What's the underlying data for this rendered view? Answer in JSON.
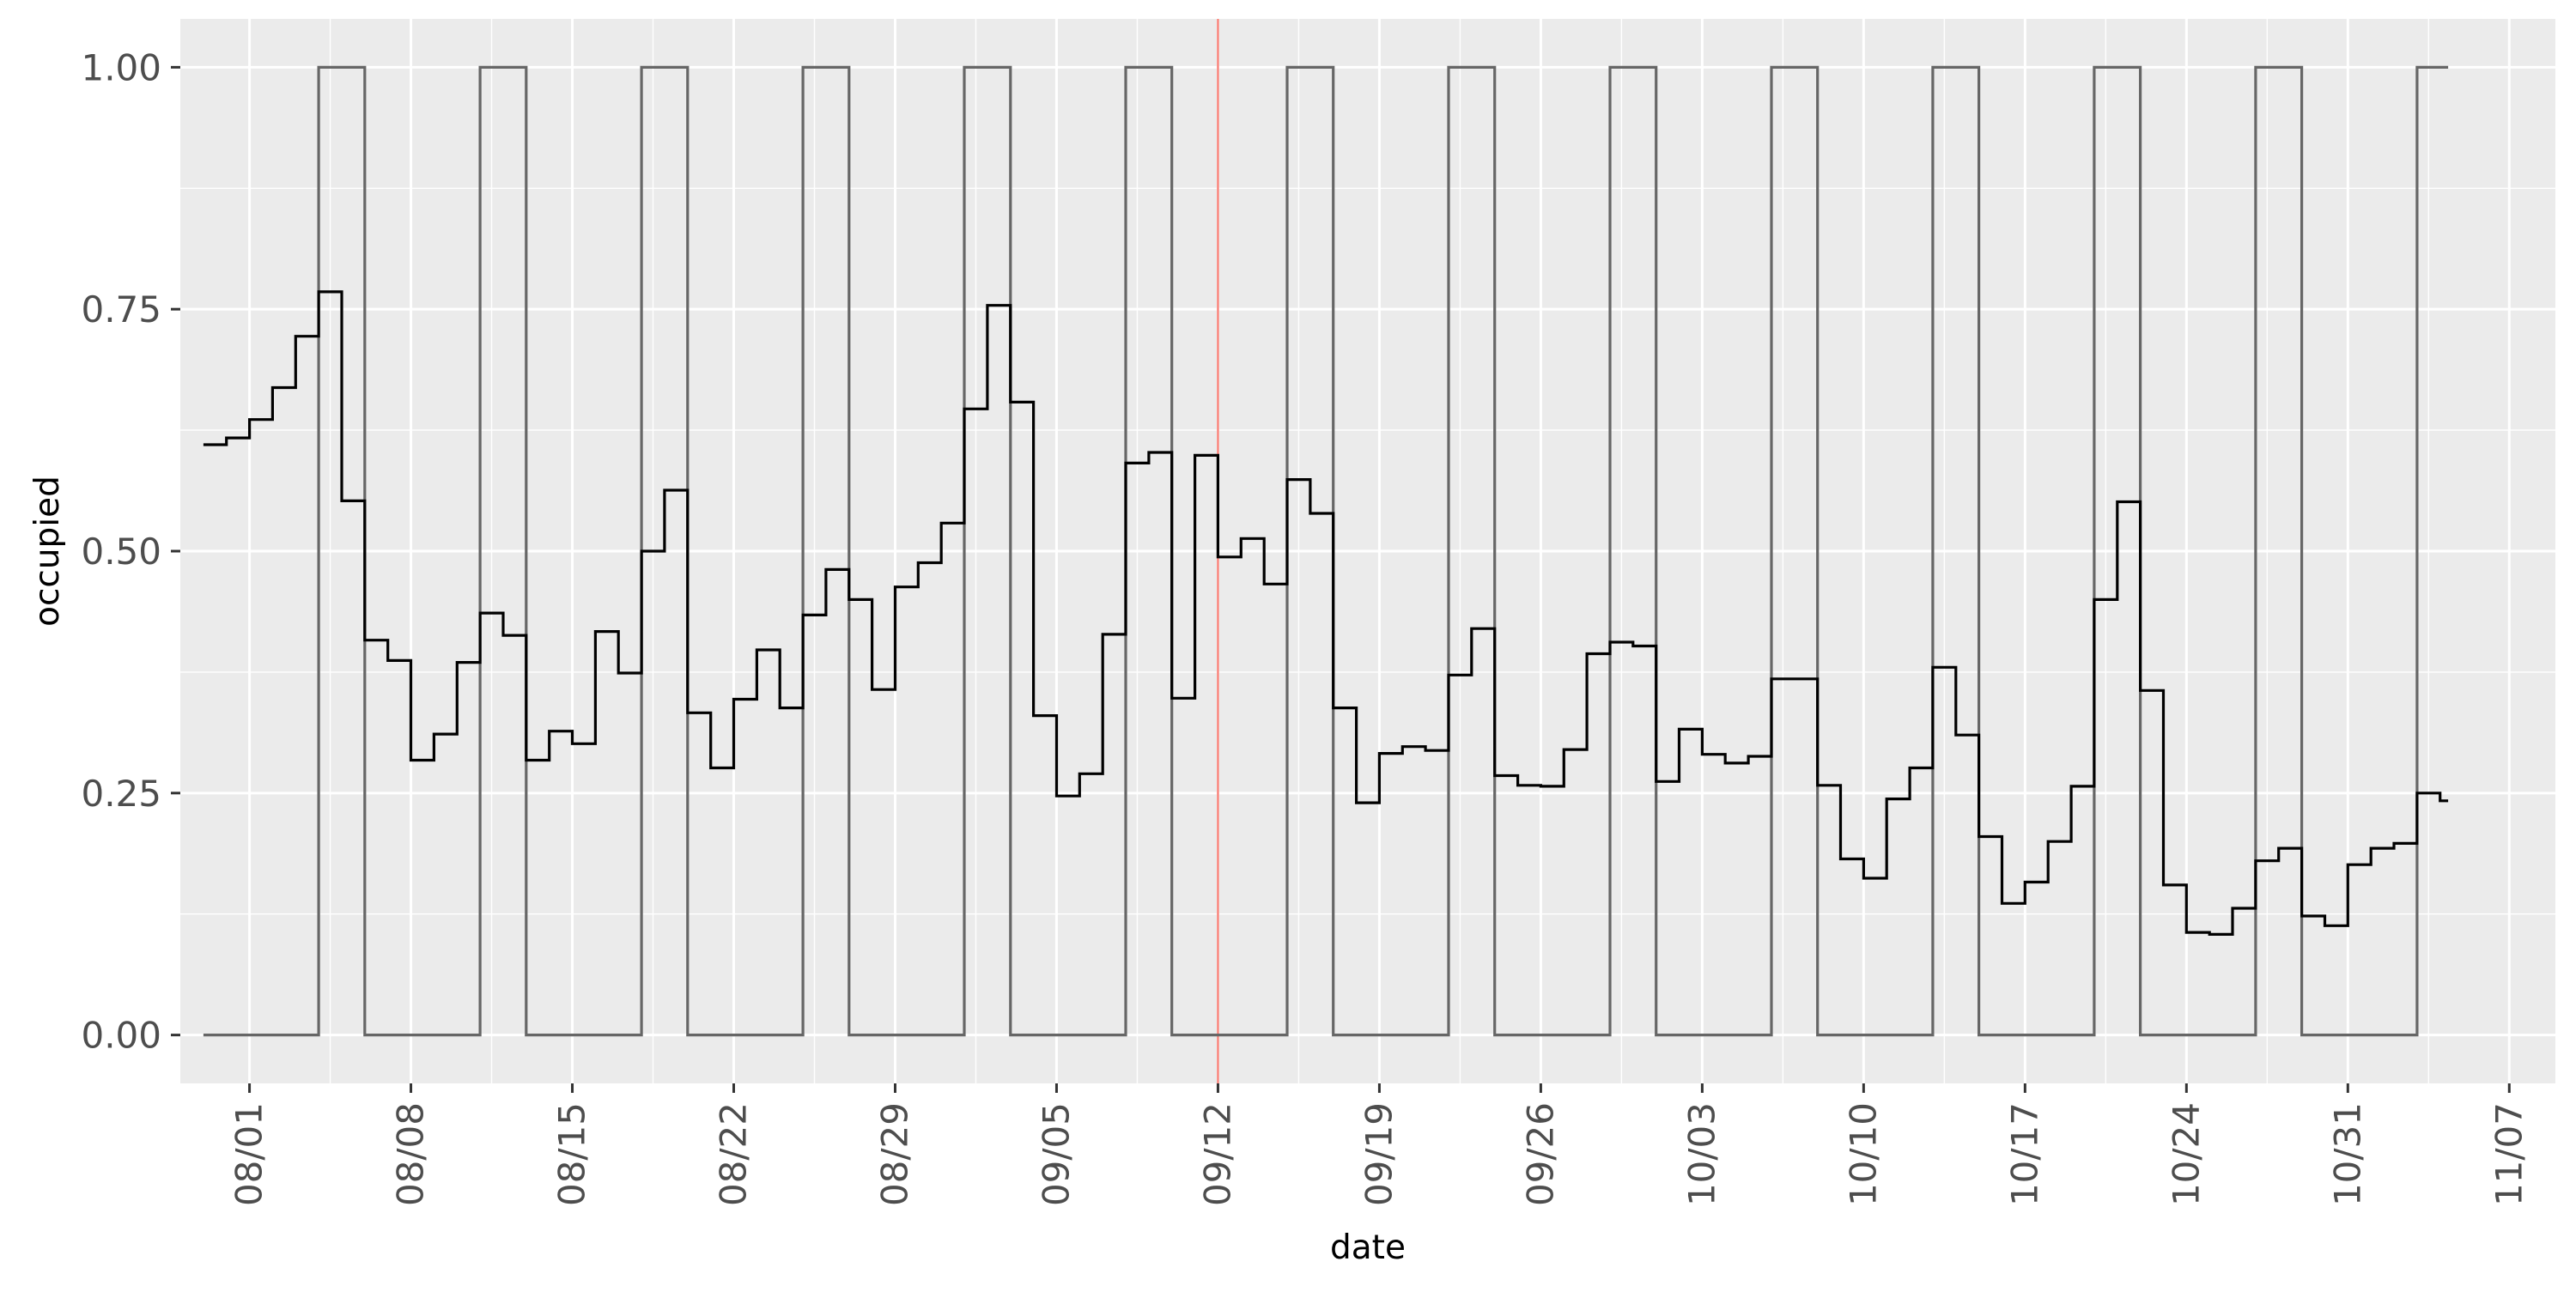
{
  "chart_data": {
    "type": "line",
    "xlabel": "date",
    "ylabel": "occupied",
    "x_start": "07/30",
    "x_ticks": [
      "08/01",
      "08/08",
      "08/15",
      "08/22",
      "08/29",
      "09/05",
      "09/12",
      "09/19",
      "09/26",
      "10/03",
      "10/10",
      "10/17",
      "10/24",
      "10/31",
      "11/07"
    ],
    "y_ticks": [
      "0.00",
      "0.25",
      "0.50",
      "0.75",
      "1.00"
    ],
    "ylim": [
      -0.05,
      1.05
    ],
    "xlim": [
      "07/29",
      "11/09"
    ],
    "grid": true,
    "background": "#EBEBEB",
    "grid_color": "#FFFFFF",
    "reference_line": {
      "x": "09/12",
      "color": "#F8766D"
    },
    "series": [
      {
        "style": "step",
        "color": "#000000",
        "values": [
          0.61,
          0.617,
          0.636,
          0.669,
          0.722,
          0.768,
          0.552,
          0.408,
          0.387,
          0.284,
          0.311,
          0.385,
          0.436,
          0.413,
          0.284,
          0.314,
          0.301,
          0.417,
          0.374,
          0.5,
          0.563,
          0.333,
          0.276,
          0.347,
          0.398,
          0.338,
          0.434,
          0.481,
          0.45,
          0.357,
          0.463,
          0.488,
          0.529,
          0.647,
          0.754,
          0.654,
          0.33,
          0.247,
          0.27,
          0.414,
          0.591,
          0.602,
          0.348,
          0.599,
          0.494,
          0.513,
          0.466,
          0.574,
          0.539,
          0.338,
          0.24,
          0.291,
          0.298,
          0.294,
          0.372,
          0.42,
          0.268,
          0.258,
          0.257,
          0.295,
          0.394,
          0.406,
          0.402,
          0.262,
          0.316,
          0.29,
          0.281,
          0.288,
          0.368,
          0.368,
          0.258,
          0.182,
          0.162,
          0.244,
          0.276,
          0.38,
          0.31,
          0.205,
          0.136,
          0.158,
          0.2,
          0.257,
          0.45,
          0.551,
          0.356,
          0.155,
          0.106,
          0.104,
          0.131,
          0.18,
          0.193,
          0.123,
          0.113,
          0.176,
          0.193,
          0.198,
          0.25,
          0.242
        ]
      },
      {
        "style": "step",
        "color": "#666666",
        "values": [
          0,
          0,
          0,
          0,
          0,
          1,
          1,
          0,
          0,
          0,
          0,
          0,
          1,
          1,
          0,
          0,
          0,
          0,
          0,
          1,
          1,
          0,
          0,
          0,
          0,
          0,
          1,
          1,
          0,
          0,
          0,
          0,
          0,
          1,
          1,
          0,
          0,
          0,
          0,
          0,
          1,
          1,
          0,
          0,
          0,
          0,
          0,
          1,
          1,
          0,
          0,
          0,
          0,
          0,
          1,
          1,
          0,
          0,
          0,
          0,
          0,
          1,
          1,
          0,
          0,
          0,
          0,
          0,
          1,
          1,
          0,
          0,
          0,
          0,
          0,
          1,
          1,
          0,
          0,
          0,
          0,
          0,
          1,
          1,
          0,
          0,
          0,
          0,
          0,
          1,
          1,
          0,
          0,
          0,
          0,
          0,
          1,
          1
        ]
      }
    ]
  }
}
